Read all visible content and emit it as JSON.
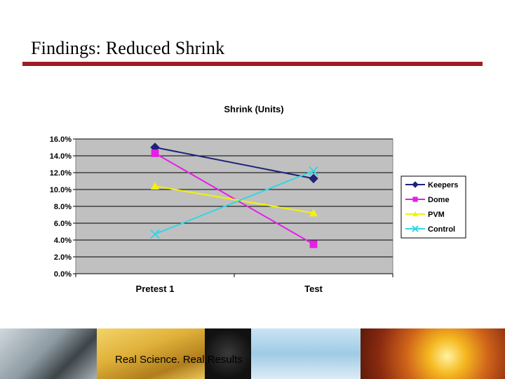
{
  "slide": {
    "title": "Findings: Reduced Shrink",
    "footer_text": "Real Science. Real Results",
    "accent_color": "#9e1d21"
  },
  "chart_data": {
    "type": "line",
    "title": "Shrink (Units)",
    "categories": [
      "Pretest 1",
      "Test"
    ],
    "ylim": [
      0,
      16
    ],
    "yticks": [
      "0.0%",
      "2.0%",
      "4.0%",
      "6.0%",
      "8.0%",
      "10.0%",
      "12.0%",
      "14.0%",
      "16.0%"
    ],
    "grid": true,
    "legend_position": "right",
    "series": [
      {
        "name": "Keepers",
        "values": [
          15.0,
          11.3
        ],
        "color": "#1f237a",
        "marker": "diamond"
      },
      {
        "name": "Dome",
        "values": [
          14.3,
          3.5
        ],
        "color": "#e61ee6",
        "marker": "square"
      },
      {
        "name": "PVM",
        "values": [
          10.4,
          7.2
        ],
        "color": "#f2f20a",
        "marker": "triangle"
      },
      {
        "name": "Control",
        "values": [
          4.7,
          12.2
        ],
        "color": "#33d6e6",
        "marker": "x"
      }
    ]
  }
}
